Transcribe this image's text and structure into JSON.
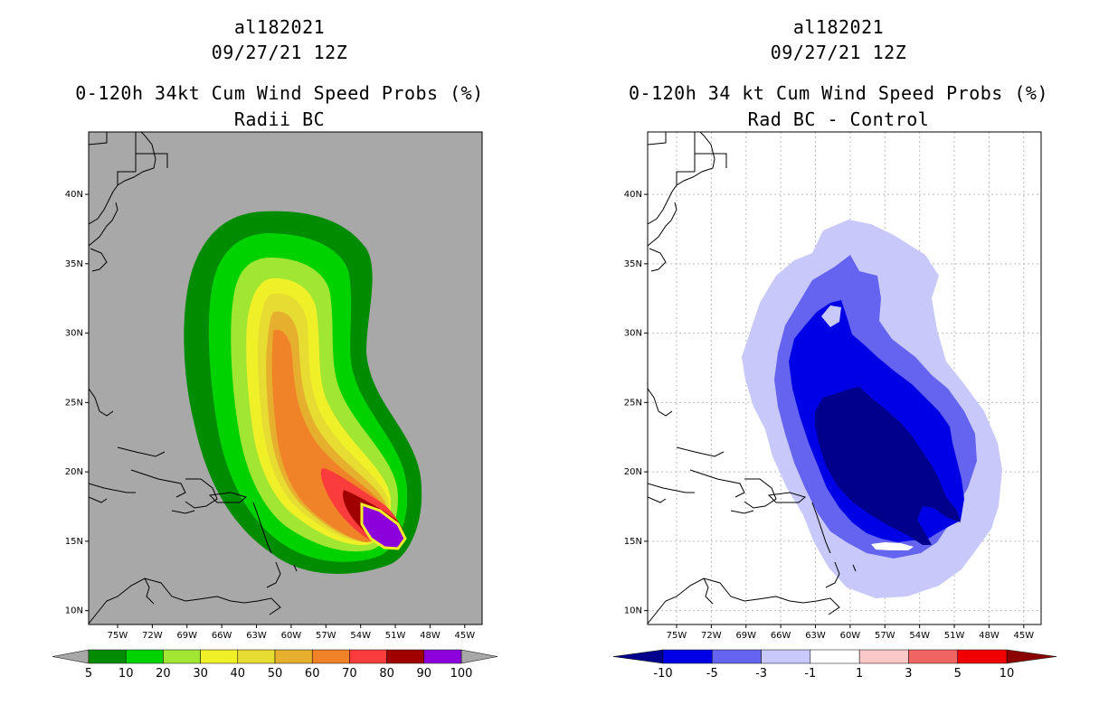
{
  "panels": [
    {
      "storm_id": "al182021",
      "datetime": "09/27/21 12Z",
      "title": "0-120h 34kt Cum Wind Speed Probs (%)",
      "subtitle": "Radii BC"
    },
    {
      "storm_id": "al182021",
      "datetime": "09/27/21 12Z",
      "title": "0-120h 34 kt Cum Wind Speed Probs (%)",
      "subtitle": "Rad BC - Control"
    }
  ],
  "chart_data": [
    {
      "type": "heatmap",
      "title": "0-120h 34kt Cum Wind Speed Probs (%)",
      "subtitle": "Radii BC",
      "x_ticks": [
        "75W",
        "72W",
        "69W",
        "66W",
        "63W",
        "60W",
        "57W",
        "54W",
        "51W",
        "48W",
        "45W"
      ],
      "y_ticks": [
        "10N",
        "15N",
        "20N",
        "25N",
        "30N",
        "35N",
        "40N"
      ],
      "xlim_deg_w": [
        77.5,
        43.5
      ],
      "ylim_deg_n": [
        9,
        44.5
      ],
      "grid": false,
      "background": "#a8a8a8",
      "colorbar": {
        "labels": [
          "5",
          "10",
          "20",
          "30",
          "40",
          "50",
          "60",
          "70",
          "80",
          "90",
          "100"
        ],
        "colors": [
          "#008c00",
          "#00d200",
          "#a0e632",
          "#f0f028",
          "#e6dc32",
          "#e6af2d",
          "#f08228",
          "#fa3c3c",
          "#a00000",
          "#8c00dc"
        ],
        "end_arrow_color": "#a8a8a8"
      }
    },
    {
      "type": "heatmap",
      "title": "0-120h 34 kt Cum Wind Speed Probs (%)",
      "subtitle": "Rad BC - Control",
      "x_ticks": [
        "75W",
        "72W",
        "69W",
        "66W",
        "63W",
        "60W",
        "57W",
        "54W",
        "51W",
        "48W",
        "45W"
      ],
      "y_ticks": [
        "10N",
        "15N",
        "20N",
        "25N",
        "30N",
        "35N",
        "40N"
      ],
      "xlim_deg_w": [
        77.5,
        43.5
      ],
      "ylim_deg_n": [
        9,
        44.5
      ],
      "grid": true,
      "background": "#ffffff",
      "colorbar": {
        "labels": [
          "-10",
          "-5",
          "-3",
          "-1",
          "1",
          "3",
          "5",
          "10"
        ],
        "colors": [
          "#0000e6",
          "#6464f0",
          "#c8c8fa",
          "#ffffff",
          "#fac8c8",
          "#f06464",
          "#f00000"
        ],
        "low_arrow_color": "#00008c",
        "high_arrow_color": "#8c0000"
      }
    }
  ]
}
